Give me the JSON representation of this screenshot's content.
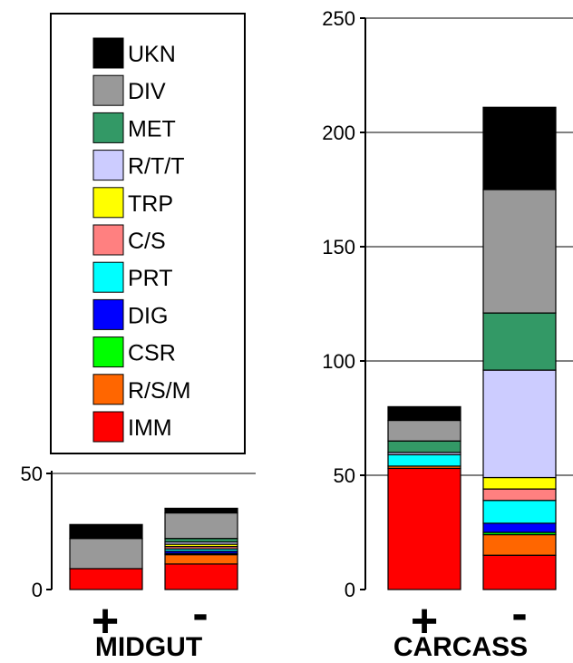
{
  "legend": [
    {
      "label": "UKN",
      "color": "#000000"
    },
    {
      "label": "DIV",
      "color": "#999999"
    },
    {
      "label": "MET",
      "color": "#339966"
    },
    {
      "label": "R/T/T",
      "color": "#ccccff"
    },
    {
      "label": "TRP",
      "color": "#ffff00"
    },
    {
      "label": "C/S",
      "color": "#ff8080"
    },
    {
      "label": "PRT",
      "color": "#00ffff"
    },
    {
      "label": "DIG",
      "color": "#0000ff"
    },
    {
      "label": "CSR",
      "color": "#00ff00"
    },
    {
      "label": "R/S/M",
      "color": "#ff6600"
    },
    {
      "label": "IMM",
      "color": "#ff0000"
    }
  ],
  "chart_data": [
    {
      "type": "bar",
      "stacked": true,
      "title": "MIDGUT",
      "categories": [
        "+",
        "-"
      ],
      "ylim": [
        0,
        50
      ],
      "yticks": [
        0,
        50
      ],
      "grid": true,
      "series": [
        {
          "name": "IMM",
          "values": [
            9,
            11
          ]
        },
        {
          "name": "R/S/M",
          "values": [
            0,
            4
          ]
        },
        {
          "name": "CSR",
          "values": [
            0,
            0.5
          ]
        },
        {
          "name": "DIG",
          "values": [
            0,
            1
          ]
        },
        {
          "name": "PRT",
          "values": [
            0,
            1
          ]
        },
        {
          "name": "C/S",
          "values": [
            0,
            1
          ]
        },
        {
          "name": "TRP",
          "values": [
            0,
            1
          ]
        },
        {
          "name": "R/T/T",
          "values": [
            0,
            1
          ]
        },
        {
          "name": "MET",
          "values": [
            0,
            1.5
          ]
        },
        {
          "name": "DIV",
          "values": [
            13,
            11
          ]
        },
        {
          "name": "UKN",
          "values": [
            6,
            2
          ]
        }
      ]
    },
    {
      "type": "bar",
      "stacked": true,
      "title": "CARCASS",
      "categories": [
        "+",
        "-"
      ],
      "ylim": [
        0,
        250
      ],
      "yticks": [
        0,
        50,
        100,
        150,
        200,
        250
      ],
      "grid": true,
      "series": [
        {
          "name": "IMM",
          "values": [
            53,
            15
          ]
        },
        {
          "name": "R/S/M",
          "values": [
            1,
            9
          ]
        },
        {
          "name": "CSR",
          "values": [
            0,
            1
          ]
        },
        {
          "name": "DIG",
          "values": [
            0,
            4
          ]
        },
        {
          "name": "PRT",
          "values": [
            5,
            10
          ]
        },
        {
          "name": "C/S",
          "values": [
            0,
            5
          ]
        },
        {
          "name": "TRP",
          "values": [
            0,
            5
          ]
        },
        {
          "name": "R/T/T",
          "values": [
            1,
            47
          ]
        },
        {
          "name": "MET",
          "values": [
            5,
            25
          ]
        },
        {
          "name": "DIV",
          "values": [
            9,
            54
          ]
        },
        {
          "name": "UKN",
          "values": [
            6,
            36
          ]
        }
      ]
    }
  ]
}
